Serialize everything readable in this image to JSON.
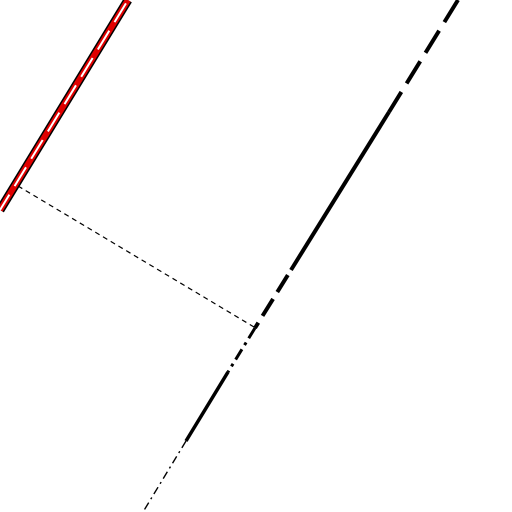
{
  "map": {
    "background_color": "#ffffff",
    "features": [
      {
        "name": "highlighted-boundary-line",
        "style": "red-with-white-dashes-and-black-edges",
        "color": "#e00000"
      },
      {
        "name": "main-boundary-line",
        "style": "black-solid-and-dashed",
        "color": "#000000"
      },
      {
        "name": "dashed-connector-line",
        "style": "thin-black-dashed",
        "color": "#000000"
      },
      {
        "name": "lower-boundary-line",
        "style": "black-dash-dot",
        "color": "#000000"
      }
    ]
  }
}
